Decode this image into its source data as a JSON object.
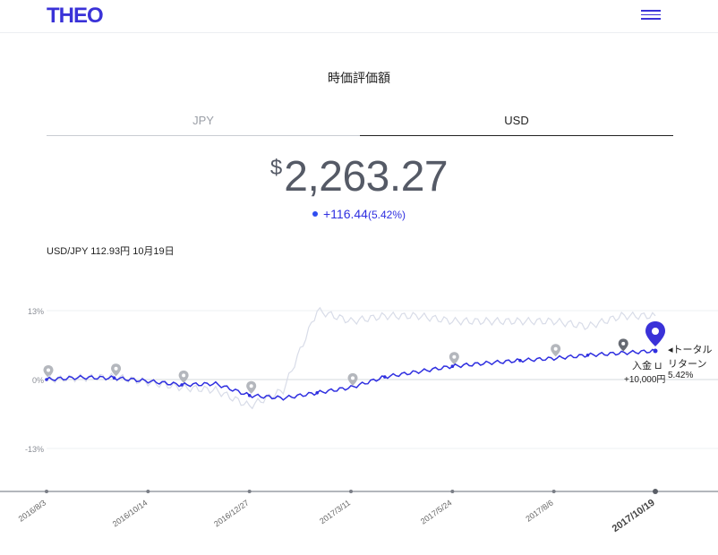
{
  "header": {
    "logo": "THEO",
    "menu_icon": "hamburger-menu-icon"
  },
  "title": "時価評価額",
  "tabs": [
    {
      "label": "JPY",
      "active": false
    },
    {
      "label": "USD",
      "active": true
    }
  ],
  "value": {
    "currency": "$",
    "amount": "2,263.27"
  },
  "change": {
    "amount": "+116.44",
    "percent": "(5.42%)"
  },
  "exchange_rate": "USD/JPY 112.93円 10月19日",
  "colors": {
    "brand": "#3a32d8",
    "series": "#2f2fe0",
    "faint_series": "#d8dce8",
    "marker": "#9a9ea6"
  },
  "chart_data": {
    "type": "line",
    "y_ticks": [
      "13%",
      "0%",
      "-13%"
    ],
    "ylim": [
      -21,
      15
    ],
    "x_ticks": [
      "2016/8/3",
      "2016/10/14",
      "2016/12/27",
      "2017/3/11",
      "2017/5/24",
      "2017/8/6",
      "2017/10/19"
    ],
    "series": [
      {
        "name": "リターン",
        "values": [
          0,
          0.4,
          0.3,
          -0.3,
          -1,
          -0.8,
          -3,
          -3.5,
          -2.5,
          -1.5,
          0.5,
          1.5,
          2.5,
          3.1,
          3.6,
          4,
          4.6,
          5,
          5.4
        ]
      },
      {
        "name": "",
        "values": [
          0,
          0.3,
          0.5,
          -0.5,
          -1.5,
          -2,
          -5,
          -2,
          13,
          11,
          12,
          12,
          11,
          11,
          11,
          11,
          10,
          12,
          12
        ]
      }
    ],
    "annotations": {
      "total": "トータル",
      "return_label": "リターン",
      "return_value": "5.42%",
      "deposit_label": "入金",
      "deposit_amount": "+10,000円"
    }
  }
}
